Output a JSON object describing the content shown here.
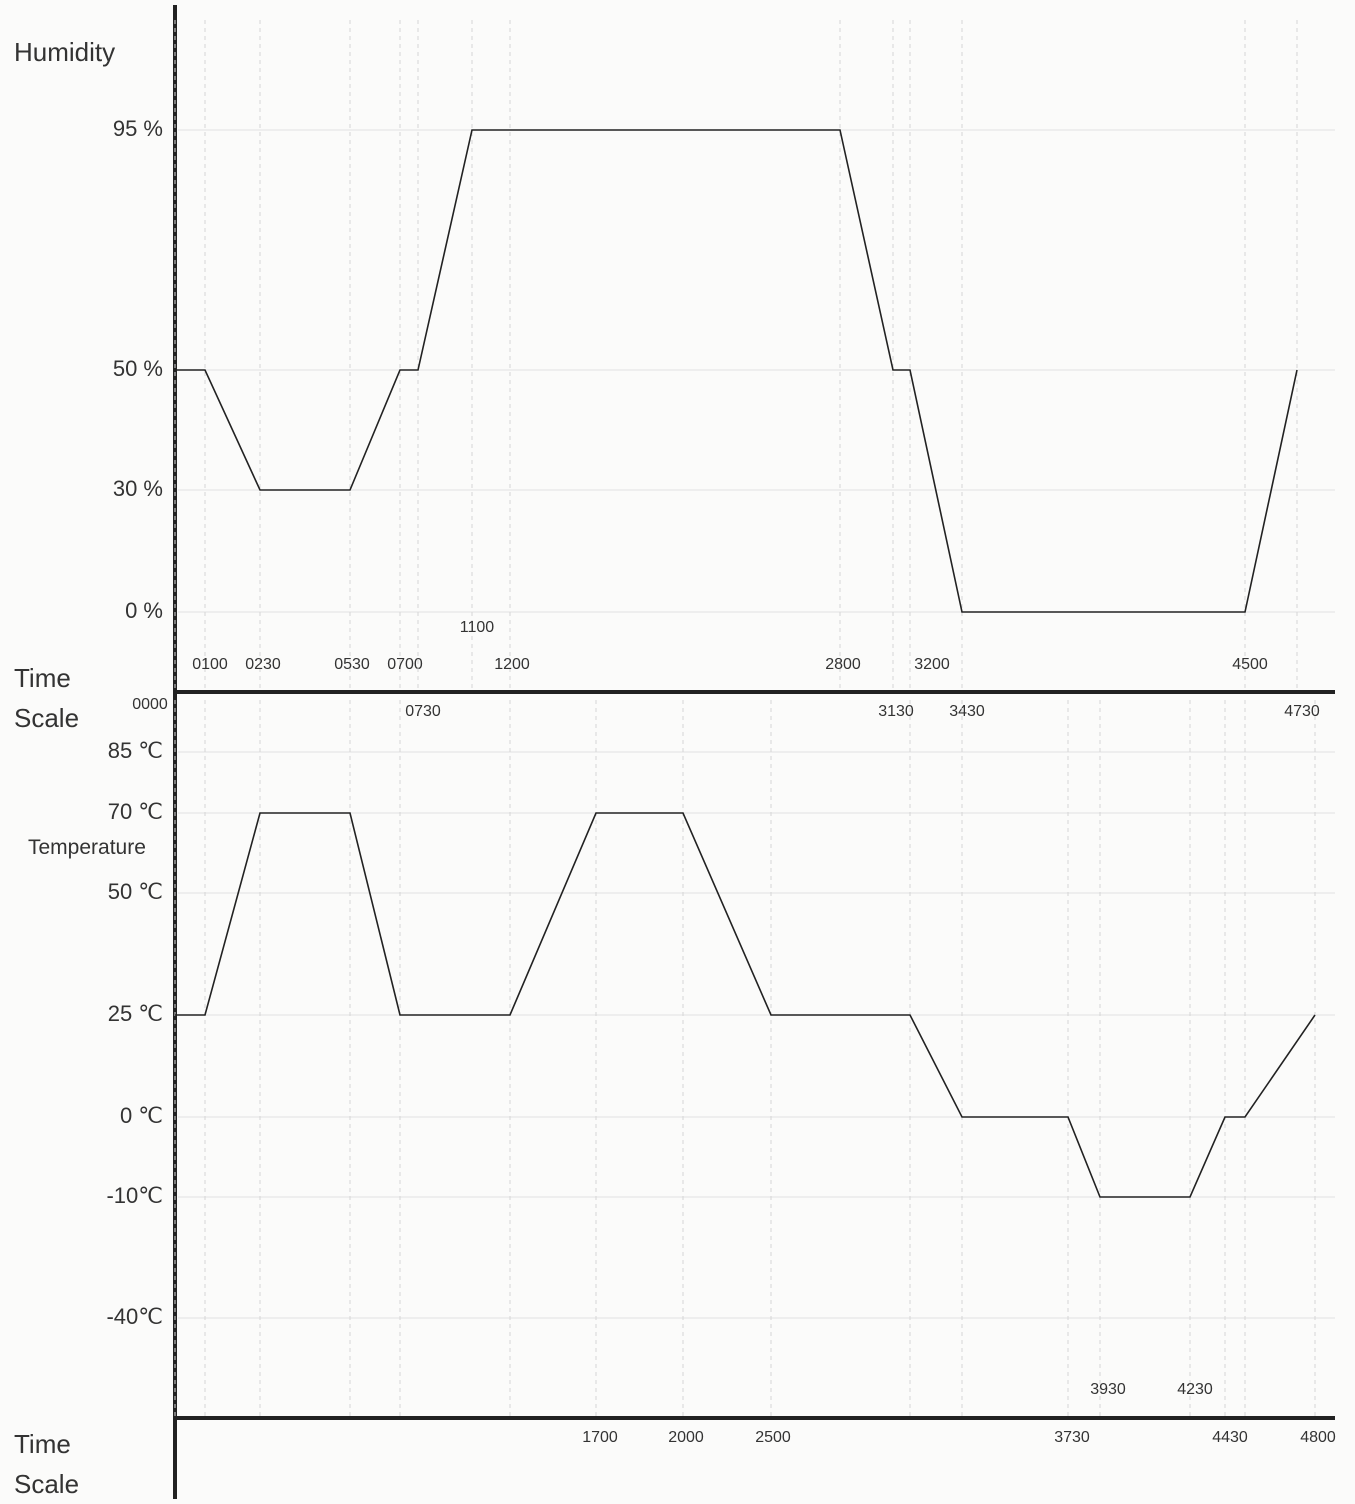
{
  "chart_data": [
    {
      "type": "line",
      "y_axis_label": "Humidity",
      "x_axis_label": "Time Scale",
      "color": "#222222",
      "x": [
        "0000",
        "0100",
        "0230",
        "0530",
        "0700",
        "0730",
        "1100",
        "1200",
        "2800",
        "3130",
        "3200",
        "3430",
        "4500",
        "4730"
      ],
      "values": [
        50,
        50,
        30,
        30,
        50,
        50,
        95,
        95,
        95,
        50,
        50,
        0,
        0,
        50
      ],
      "yticks": [
        {
          "value": 95,
          "label": "95 %"
        },
        {
          "value": 50,
          "label": "50 %"
        },
        {
          "value": 30,
          "label": "30 %"
        },
        {
          "value": 0,
          "label": "0 %"
        }
      ],
      "grid": true
    },
    {
      "type": "line",
      "y_axis_label": "Temperature",
      "x_axis_label": "Time Scale",
      "color": "#222222",
      "x": [
        "0000",
        "0100",
        "0230",
        "0530",
        "0700",
        "1200",
        "1700",
        "2000",
        "2500",
        "3200",
        "3430",
        "3730",
        "3930",
        "4230",
        "4430",
        "4500",
        "4800"
      ],
      "values": [
        25,
        25,
        70,
        70,
        25,
        25,
        70,
        70,
        25,
        25,
        0,
        0,
        -10,
        -10,
        0,
        0,
        25
      ],
      "yticks": [
        {
          "value": 85,
          "label": "85 ℃"
        },
        {
          "value": 70,
          "label": "70 ℃"
        },
        {
          "value": 50,
          "label": "50 ℃"
        },
        {
          "value": 25,
          "label": "25 ℃"
        },
        {
          "value": 0,
          "label": "0 ℃"
        },
        {
          "value": -10,
          "label": "-10℃"
        },
        {
          "value": -40,
          "label": "-40℃"
        }
      ],
      "grid": true
    }
  ]
}
